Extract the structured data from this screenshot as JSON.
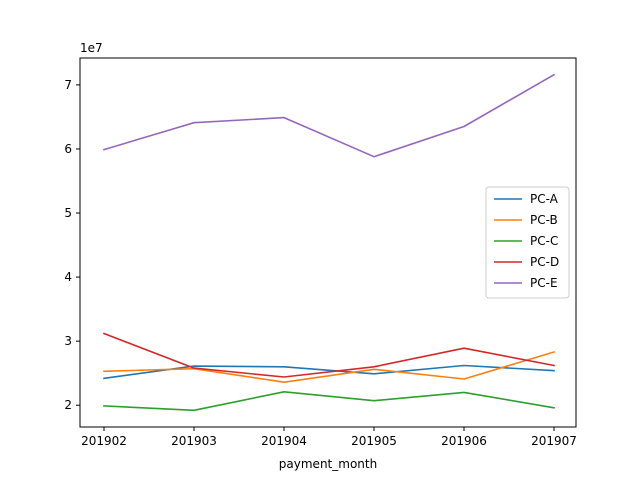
{
  "chart_data": {
    "type": "line",
    "categories": [
      "201902",
      "201903",
      "201904",
      "201905",
      "201906",
      "201907"
    ],
    "xlabel": "payment_month",
    "ylabel": "",
    "y_offset_label": "1e7",
    "y_ticks": [
      2,
      3,
      4,
      5,
      6,
      7
    ],
    "ylim": [
      1.66,
      7.42
    ],
    "legend_position": "center-right",
    "grid": false,
    "series": [
      {
        "name": "PC-A",
        "color": "#1f77b4",
        "values": [
          2.42,
          2.61,
          2.6,
          2.49,
          2.62,
          2.54
        ]
      },
      {
        "name": "PC-B",
        "color": "#ff7f0e",
        "values": [
          2.53,
          2.57,
          2.36,
          2.56,
          2.41,
          2.83
        ]
      },
      {
        "name": "PC-C",
        "color": "#2ca02c",
        "values": [
          1.99,
          1.92,
          2.21,
          2.07,
          2.2,
          1.96
        ]
      },
      {
        "name": "PC-D",
        "color": "#d62728",
        "values": [
          3.12,
          2.58,
          2.44,
          2.6,
          2.89,
          2.62
        ]
      },
      {
        "name": "PC-E",
        "color": "#9467bd",
        "values": [
          5.99,
          6.41,
          6.49,
          5.88,
          6.35,
          7.16
        ]
      }
    ]
  }
}
